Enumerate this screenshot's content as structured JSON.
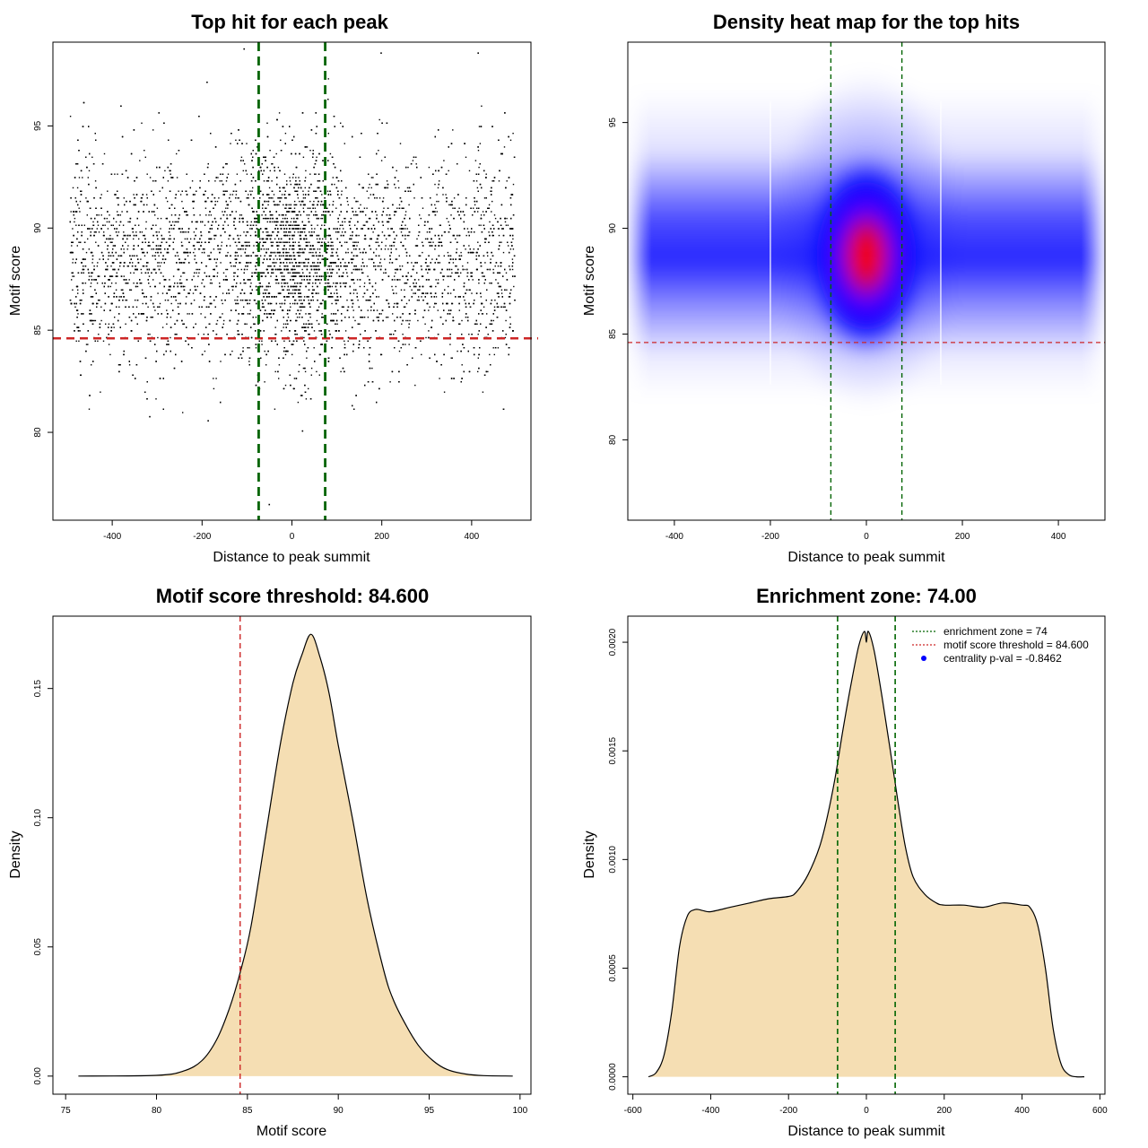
{
  "figure": {
    "colors": {
      "points": "#000000",
      "zone_line": "#006400",
      "threshold_line": "#cd2626",
      "density_fill": "#f5deb3",
      "heat_low": "#ffffff",
      "heat_mid": "#0000ff",
      "heat_high": "#ff0000",
      "pval_point": "#0000ff"
    }
  },
  "chart_data": [
    {
      "id": "scatter",
      "type": "scatter",
      "title": "Top hit for each peak",
      "xlabel": "Distance to peak summit",
      "ylabel": "Motif score",
      "xlim": [
        -532,
        532
      ],
      "ylim": [
        75.7,
        99.1
      ],
      "xticks": [
        -400,
        -200,
        0,
        200,
        400
      ],
      "yticks": [
        80,
        85,
        90,
        95
      ],
      "x_range": [
        -495,
        495
      ],
      "score_center": 88.5,
      "score_sd": 2.6,
      "threshold": 84.6,
      "enrichment_zone": 74,
      "outliers": [
        {
          "x": -108,
          "y": 98.8
        },
        {
          "x": 197,
          "y": 98.6
        },
        {
          "x": 413,
          "y": 98.6
        },
        {
          "x": 22,
          "y": 80.1
        },
        {
          "x": -52,
          "y": 76.5
        },
        {
          "x": -318,
          "y": 80.8
        },
        {
          "x": -188,
          "y": 80.6
        }
      ]
    },
    {
      "id": "heatmap",
      "type": "heatmap",
      "title": "Density heat map for the top hits",
      "xlabel": "Distance to peak summit",
      "ylabel": "Motif score",
      "xlim": [
        -497,
        497
      ],
      "ylim": [
        76.2,
        98.8
      ],
      "xticks": [
        -400,
        -200,
        0,
        200,
        400
      ],
      "yticks": [
        80,
        85,
        90,
        95
      ],
      "peak": {
        "x": 0,
        "y": 88.7
      },
      "threshold": 84.6,
      "enrichment_zone": 74,
      "band_edges": [
        -200,
        155
      ]
    },
    {
      "id": "score_density",
      "type": "area",
      "title": "Motif score threshold: 84.600",
      "xlabel": "Motif score",
      "ylabel": "Density",
      "xlim": [
        74.3,
        100.6
      ],
      "ylim": [
        -0.007,
        0.178
      ],
      "xticks": [
        75,
        80,
        85,
        90,
        95,
        100
      ],
      "yticks": [
        0.0,
        0.05,
        0.1,
        0.15
      ],
      "ytick_labels": [
        "0.00",
        "0.05",
        "0.10",
        "0.15"
      ],
      "threshold": 84.6,
      "x": [
        75.7,
        80,
        81.5,
        82.5,
        83.3,
        84,
        84.6,
        85.2,
        86,
        86.8,
        87.5,
        88,
        88.5,
        89,
        89.5,
        90,
        90.8,
        91.6,
        92.5,
        93,
        93.7,
        94.4,
        95.2,
        96,
        97,
        98,
        99.6
      ],
      "y": [
        0.0,
        0.0003,
        0.002,
        0.006,
        0.014,
        0.026,
        0.04,
        0.058,
        0.093,
        0.128,
        0.152,
        0.163,
        0.171,
        0.162,
        0.148,
        0.128,
        0.099,
        0.068,
        0.041,
        0.03,
        0.02,
        0.012,
        0.006,
        0.0025,
        0.0008,
        0.0002,
        0.0
      ]
    },
    {
      "id": "position_density",
      "type": "area",
      "title": "Enrichment zone: 74.00",
      "xlabel": "Distance to peak summit",
      "ylabel": "Density",
      "xlim": [
        -613,
        613
      ],
      "ylim": [
        -8e-05,
        0.00212
      ],
      "xticks": [
        -600,
        -400,
        -200,
        0,
        200,
        400,
        600
      ],
      "yticks": [
        0.0,
        0.0005,
        0.001,
        0.0015,
        0.002
      ],
      "ytick_labels": [
        "0.0000",
        "0.0005",
        "0.0010",
        "0.0015",
        "0.0020"
      ],
      "enrichment_zone": 74,
      "x": [
        -560,
        -540,
        -520,
        -500,
        -480,
        -460,
        -440,
        -420,
        -400,
        -350,
        -300,
        -250,
        -200,
        -180,
        -150,
        -120,
        -100,
        -80,
        -60,
        -40,
        -20,
        -5,
        0,
        5,
        20,
        40,
        60,
        80,
        100,
        120,
        150,
        180,
        200,
        250,
        300,
        350,
        400,
        420,
        440,
        460,
        480,
        500,
        520,
        540,
        560
      ],
      "y": [
        0.0,
        2e-05,
        0.0001,
        0.0003,
        0.0006,
        0.00074,
        0.00077,
        0.000765,
        0.00076,
        0.00078,
        0.0008,
        0.00082,
        0.00083,
        0.00085,
        0.00093,
        0.00106,
        0.0012,
        0.00138,
        0.0016,
        0.0018,
        0.00198,
        0.00205,
        0.002,
        0.00205,
        0.00196,
        0.00175,
        0.00152,
        0.00128,
        0.00106,
        0.00092,
        0.00084,
        0.0008,
        0.00079,
        0.00079,
        0.00078,
        0.0008,
        0.00079,
        0.00078,
        0.0007,
        0.0005,
        0.00022,
        6e-05,
        1e-05,
        0.0,
        0.0
      ],
      "legend": {
        "position": "top-right",
        "entries": [
          {
            "label": "enrichment zone = 74",
            "symbol": "dotted-line",
            "color": "#006400"
          },
          {
            "label": "motif score threshold = 84.600",
            "symbol": "dotted-line",
            "color": "#cd2626"
          },
          {
            "label": "centrality p-val = -0.8462",
            "symbol": "point",
            "color": "#0000ff"
          }
        ]
      }
    }
  ]
}
